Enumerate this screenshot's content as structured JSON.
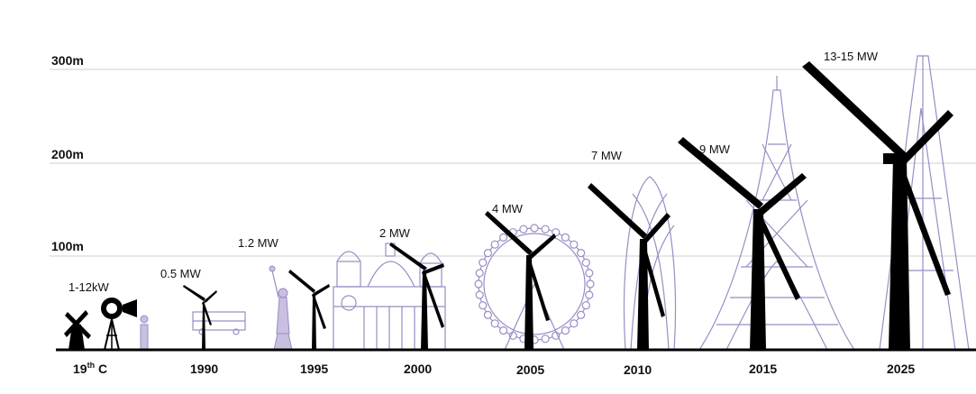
{
  "y_axis": {
    "labels": [
      "300m",
      "200m",
      "100m"
    ]
  },
  "eras": [
    {
      "year": "19",
      "year_sup": "th",
      "year_suffix": " C",
      "power": "1-12kW",
      "landmark": "windmill-and-water-pump"
    },
    {
      "year": "1990",
      "power": "0.5 MW",
      "landmark": "double-decker-bus"
    },
    {
      "year": "1995",
      "power": "1.2 MW",
      "landmark": "statue-of-liberty"
    },
    {
      "year": "2000",
      "power": "2 MW",
      "landmark": "st-pauls-cathedral"
    },
    {
      "year": "2005",
      "power": "4 MW",
      "landmark": "london-eye"
    },
    {
      "year": "2010",
      "power": "7 MW",
      "landmark": "the-gherkin"
    },
    {
      "year": "2015",
      "power": "9 MW",
      "landmark": "eiffel-tower"
    },
    {
      "year": "2025",
      "power": "13-15 MW",
      "landmark": "lattice-tower"
    }
  ],
  "colors": {
    "turbine": "#000000",
    "landmark_outline": "#9b8cc4",
    "grid": "#cfcfcf"
  }
}
